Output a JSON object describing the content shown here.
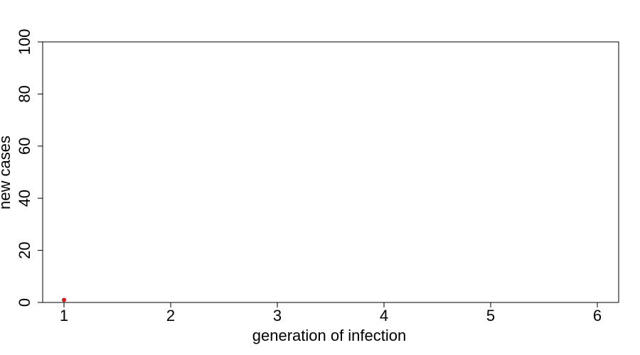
{
  "chart_data": {
    "type": "scatter",
    "x_label": "generation of infection",
    "y_label": "new cases",
    "series": [
      {
        "color": "#d7191c",
        "x": [
          1
        ],
        "values": [
          1
        ]
      }
    ],
    "xlim": [
      0.8,
      6.2
    ],
    "xticks": [
      1,
      2,
      3,
      4,
      5,
      6
    ],
    "ylim": [
      0,
      100
    ],
    "yticks": [
      0,
      20,
      40,
      60,
      80,
      100
    ],
    "grid": false
  }
}
